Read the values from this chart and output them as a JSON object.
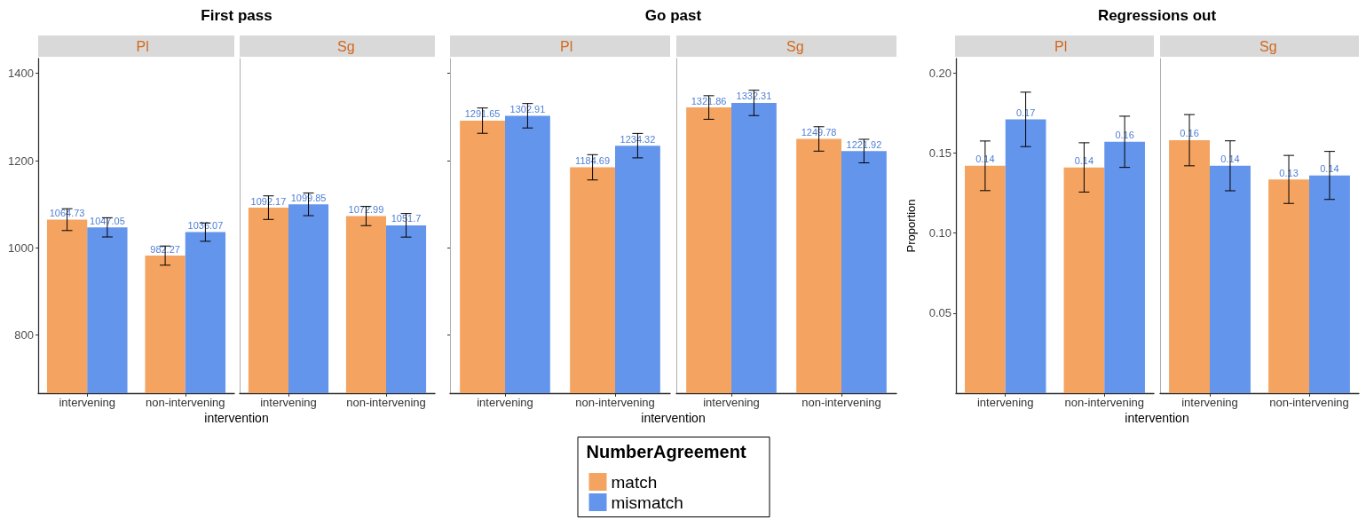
{
  "chart_data": [
    {
      "type": "bar",
      "title": "First pass",
      "subtitle": "Pl",
      "xlabel": "intervention",
      "categories": [
        "intervening",
        "non-intervening"
      ],
      "series": [
        {
          "color": "#f4a460",
          "values": [
            1064.73,
            982.27
          ],
          "errors": [
            25,
            22
          ]
        },
        {
          "color": "#6495ed",
          "values": [
            1047.05,
            1036.07
          ],
          "errors": [
            22,
            21
          ]
        }
      ],
      "ylim": [
        667,
        1434
      ],
      "yticks": [
        800,
        1000,
        1200,
        1400
      ],
      "data_labels": true
    },
    {
      "type": "bar",
      "subtitle": "Sg",
      "categories": [
        "intervening",
        "non-intervening"
      ],
      "series": [
        {
          "color": "#f4a460",
          "values": [
            1092.17,
            1072.99
          ],
          "errors": [
            27,
            22
          ]
        },
        {
          "color": "#6495ed",
          "values": [
            1099.85,
            1051.7
          ],
          "errors": [
            26,
            27
          ]
        }
      ],
      "ylim": [
        667,
        1434
      ],
      "tick_labels": "x",
      "data_labels": true
    },
    {
      "type": "bar",
      "title": "Go past",
      "subtitle": "Pl",
      "xlabel": "intervention",
      "categories": [
        "intervening",
        "non-intervening"
      ],
      "series": [
        {
          "name": "match",
          "color": "#f4a460",
          "values": [
            1291.65,
            1184.69
          ],
          "errors": [
            29,
            29
          ]
        },
        {
          "name": "mismatch",
          "color": "#6495ed",
          "values": [
            1302.91,
            1234.32
          ],
          "errors": [
            28,
            28
          ]
        }
      ],
      "ylim": [
        667,
        1434
      ],
      "yticks": [
        {
          "value": 800,
          "label": null
        },
        {
          "value": 1000,
          "label": null
        },
        {
          "value": 1200,
          "label": null
        },
        {
          "value": 1400,
          "label": null
        }
      ],
      "tick_labels": "x",
      "data_labels": true,
      "legend": "bottom",
      "legend_title": "NumberAgreement"
    },
    {
      "type": "bar",
      "subtitle": "Sg",
      "categories": [
        "intervening",
        "non-intervening"
      ],
      "series": [
        {
          "color": "#f4a460",
          "values": [
            1321.86,
            1249.78
          ],
          "errors": [
            27,
            28
          ]
        },
        {
          "color": "#6495ed",
          "values": [
            1332.31,
            1221.92
          ],
          "errors": [
            29,
            27
          ]
        }
      ],
      "ylim": [
        667,
        1434
      ],
      "tick_labels": "x",
      "data_labels": true
    },
    {
      "type": "bar",
      "title": "Regressions out",
      "subtitle": "Pl",
      "xlabel": "intervention",
      "ylabel": "Proportion",
      "categories": [
        "intervening",
        "non-intervening"
      ],
      "series": [
        {
          "color": "#f4a460",
          "values": [
            0.142,
            0.141
          ],
          "errors": [
            0.0155,
            0.0154
          ],
          "value_labels": [
            "0.14",
            "0.14"
          ]
        },
        {
          "color": "#6495ed",
          "values": [
            0.171,
            0.157
          ],
          "errors": [
            0.017,
            0.016
          ],
          "value_labels": [
            "0.17",
            "0.16"
          ]
        }
      ],
      "ylim": [
        0,
        0.209
      ],
      "yticks": [
        {
          "value": 0.05,
          "label": "0.05"
        },
        {
          "value": 0.1,
          "label": "0.10"
        },
        {
          "value": 0.15,
          "label": "0.15"
        },
        {
          "value": 0.2,
          "label": "0.20"
        }
      ]
    },
    {
      "type": "bar",
      "subtitle": "Sg",
      "categories": [
        "intervening",
        "non-intervening"
      ],
      "series": [
        {
          "color": "#f4a460",
          "values": [
            0.158,
            0.1335
          ],
          "errors": [
            0.016,
            0.015
          ],
          "value_labels": [
            "0.16",
            "0.13"
          ]
        },
        {
          "color": "#6495ed",
          "values": [
            0.142,
            0.136
          ],
          "errors": [
            0.0156,
            0.015
          ],
          "value_labels": [
            "0.14",
            "0.14"
          ]
        }
      ],
      "ylim": [
        0,
        0.209
      ],
      "tick_labels": "x"
    }
  ]
}
